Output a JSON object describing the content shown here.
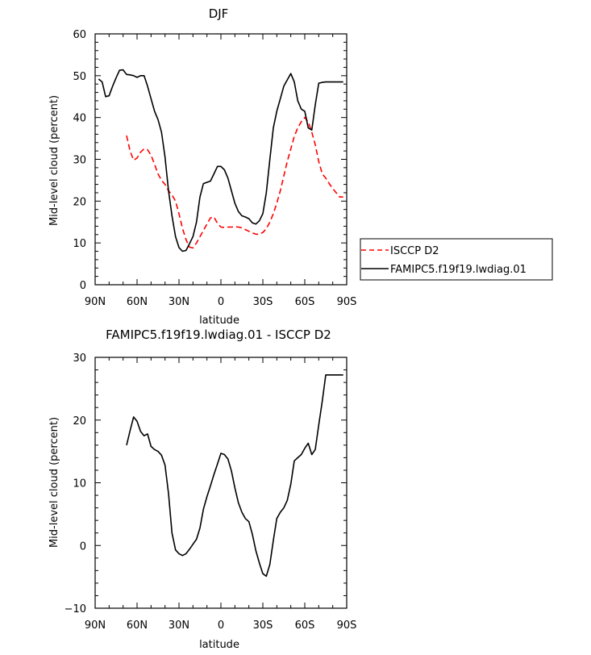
{
  "chart_data": [
    {
      "type": "line",
      "title": "DJF",
      "xlabel": "latitude",
      "ylabel": "Mid-level cloud (percent)",
      "xlim": [
        90,
        -90
      ],
      "ylim": [
        0,
        60
      ],
      "x_ticks": [
        {
          "value": 90,
          "label": "90N"
        },
        {
          "value": 60,
          "label": "60N"
        },
        {
          "value": 30,
          "label": "30N"
        },
        {
          "value": 0,
          "label": "0"
        },
        {
          "value": -30,
          "label": "30S"
        },
        {
          "value": -60,
          "label": "60S"
        },
        {
          "value": -90,
          "label": "90S"
        }
      ],
      "y_ticks": [
        {
          "value": 0,
          "label": "0"
        },
        {
          "value": 10,
          "label": "10"
        },
        {
          "value": 20,
          "label": "20"
        },
        {
          "value": 30,
          "label": "30"
        },
        {
          "value": 40,
          "label": "40"
        },
        {
          "value": 50,
          "label": "50"
        },
        {
          "value": 60,
          "label": "60"
        }
      ],
      "legend_position": "right",
      "series": [
        {
          "name": "ISCCP D2",
          "color": "#ff0000",
          "dash": true,
          "x": [
            67.5,
            65,
            62.5,
            60,
            57.5,
            55,
            52.5,
            50,
            47.5,
            45,
            42.5,
            40,
            37.5,
            35,
            32.5,
            30,
            27.5,
            25,
            22.5,
            20,
            17.5,
            15,
            12.5,
            10,
            7.5,
            5,
            2.5,
            0,
            -2.5,
            -5,
            -7.5,
            -10,
            -12.5,
            -15,
            -17.5,
            -20,
            -22.5,
            -25,
            -27.5,
            -30,
            -32.5,
            -35,
            -37.5,
            -40,
            -42.5,
            -45,
            -47.5,
            -50,
            -52.5,
            -55,
            -57.5,
            -60,
            -62.5,
            -65,
            -67.5,
            -70,
            -72.5,
            -75,
            -77.5,
            -80,
            -82.5,
            -85,
            -87.5
          ],
          "values": [
            35.7,
            32.0,
            29.8,
            30.3,
            31.7,
            32.5,
            32.3,
            31.0,
            28.8,
            26.5,
            25.0,
            24.0,
            22.5,
            21.5,
            20.0,
            17.0,
            13.5,
            10.8,
            9.0,
            8.8,
            10.0,
            11.5,
            13.0,
            14.5,
            16.0,
            16.2,
            14.7,
            13.8,
            13.7,
            13.8,
            13.8,
            13.9,
            13.8,
            13.6,
            13.2,
            12.8,
            12.4,
            12.1,
            12.1,
            12.5,
            13.4,
            15.0,
            17.0,
            19.5,
            22.5,
            26.0,
            29.5,
            32.5,
            35.5,
            37.5,
            39.0,
            40.0,
            39.0,
            36.5,
            33.5,
            29.5,
            26.5,
            25.5,
            24.2,
            23.0,
            22.0,
            21.0,
            21.0
          ]
        },
        {
          "name": "FAMIPC5.f19f19.lwdiag.01",
          "color": "#000000",
          "dash": false,
          "x": [
            87.5,
            85,
            82.5,
            80,
            77.5,
            75,
            72.5,
            70,
            67.5,
            65,
            62.5,
            60,
            57.5,
            55,
            52.5,
            50,
            47.5,
            45,
            42.5,
            40,
            37.5,
            35,
            32.5,
            30,
            27.5,
            25,
            22.5,
            20,
            17.5,
            15,
            12.5,
            10,
            7.5,
            5,
            2.5,
            0,
            -2.5,
            -5,
            -7.5,
            -10,
            -12.5,
            -15,
            -17.5,
            -20,
            -22.5,
            -25,
            -27.5,
            -30,
            -32.5,
            -35,
            -37.5,
            -40,
            -42.5,
            -45,
            -47.5,
            -50,
            -52.5,
            -55,
            -57.5,
            -60,
            -62.5,
            -65,
            -67.5,
            -70,
            -72.5,
            -75,
            -77.5,
            -80,
            -82.5,
            -85,
            -87.5
          ],
          "values": [
            49.2,
            48.5,
            45.0,
            45.2,
            47.5,
            49.5,
            51.3,
            51.4,
            50.3,
            50.2,
            50.0,
            49.6,
            50.0,
            50.0,
            47.5,
            44.5,
            41.5,
            39.5,
            36.5,
            30.5,
            22.5,
            16.5,
            11.5,
            8.9,
            8.0,
            8.2,
            9.8,
            11.5,
            15.0,
            21.0,
            24.2,
            24.5,
            24.8,
            26.5,
            28.3,
            28.3,
            27.5,
            25.5,
            22.5,
            19.5,
            17.5,
            16.5,
            16.2,
            15.8,
            14.8,
            14.5,
            15.3,
            17.0,
            22.0,
            30.0,
            37.5,
            41.5,
            44.5,
            47.5,
            49.0,
            50.5,
            48.5,
            44.0,
            42.0,
            41.5,
            37.5,
            37.0,
            43.0,
            48.2,
            48.4,
            48.5,
            48.5,
            48.5,
            48.5,
            48.5,
            48.5
          ]
        }
      ]
    },
    {
      "type": "line",
      "title": "FAMIPC5.f19f19.lwdiag.01 - ISCCP D2",
      "xlabel": "latitude",
      "ylabel": "Mid-level cloud (percent)",
      "xlim": [
        90,
        -90
      ],
      "ylim": [
        -10,
        30
      ],
      "x_ticks": [
        {
          "value": 90,
          "label": "90N"
        },
        {
          "value": 60,
          "label": "60N"
        },
        {
          "value": 30,
          "label": "30N"
        },
        {
          "value": 0,
          "label": "0"
        },
        {
          "value": -30,
          "label": "30S"
        },
        {
          "value": -60,
          "label": "60S"
        },
        {
          "value": -90,
          "label": "90S"
        }
      ],
      "y_ticks": [
        {
          "value": -10,
          "label": "−10"
        },
        {
          "value": 0,
          "label": "0"
        },
        {
          "value": 10,
          "label": "10"
        },
        {
          "value": 20,
          "label": "20"
        },
        {
          "value": 30,
          "label": "30"
        }
      ],
      "series": [
        {
          "name": "FAMIPC5.f19f19.lwdiag.01 - ISCCP D2",
          "color": "#000000",
          "dash": false,
          "x": [
            67.5,
            65,
            62.5,
            60,
            57.5,
            55,
            52.5,
            50,
            47.5,
            45,
            42.5,
            40,
            37.5,
            35,
            32.5,
            30,
            27.5,
            25,
            22.5,
            20,
            17.5,
            15,
            12.5,
            10,
            7.5,
            5,
            2.5,
            0,
            -2.5,
            -5,
            -7.5,
            -10,
            -12.5,
            -15,
            -17.5,
            -20,
            -22.5,
            -25,
            -27.5,
            -30,
            -32.5,
            -35,
            -37.5,
            -40,
            -42.5,
            -45,
            -47.5,
            -50,
            -52.5,
            -55,
            -57.5,
            -60,
            -62.5,
            -65,
            -67.5,
            -70,
            -72.5,
            -75,
            -77.5,
            -80,
            -82.5,
            -85,
            -87.5
          ],
          "values": [
            16.0,
            18.3,
            20.5,
            19.8,
            18.2,
            17.5,
            17.8,
            15.8,
            15.3,
            15.0,
            14.4,
            12.8,
            8.3,
            2.0,
            -0.7,
            -1.3,
            -1.6,
            -1.3,
            -0.6,
            0.2,
            1.0,
            2.8,
            5.8,
            7.8,
            9.5,
            11.3,
            13.0,
            14.7,
            14.5,
            13.8,
            11.9,
            9.2,
            6.8,
            5.3,
            4.3,
            3.8,
            1.8,
            -0.8,
            -2.8,
            -4.5,
            -4.9,
            -3.0,
            0.8,
            4.3,
            5.3,
            6.0,
            7.2,
            9.8,
            13.5,
            14.0,
            14.5,
            15.5,
            16.3,
            14.5,
            15.3,
            19.2,
            23.0,
            27.2,
            27.2,
            27.2,
            27.2,
            27.2,
            27.2
          ]
        }
      ]
    }
  ]
}
